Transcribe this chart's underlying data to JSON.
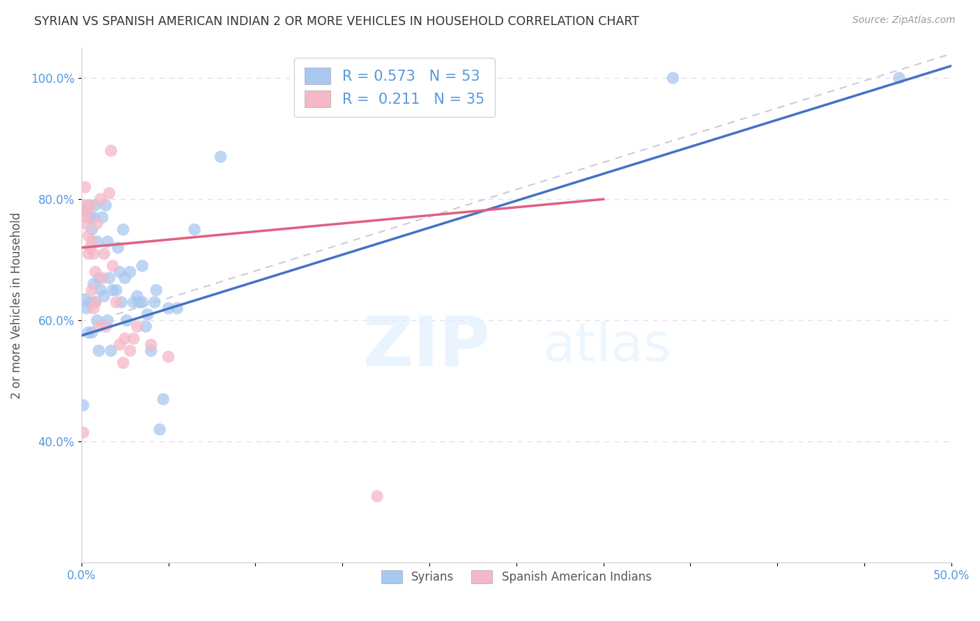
{
  "title": "SYRIAN VS SPANISH AMERICAN INDIAN 2 OR MORE VEHICLES IN HOUSEHOLD CORRELATION CHART",
  "source": "Source: ZipAtlas.com",
  "ylabel": "2 or more Vehicles in Household",
  "xlim": [
    0.0,
    0.5
  ],
  "ylim": [
    0.2,
    1.05
  ],
  "xticks": [
    0.0,
    0.05,
    0.1,
    0.15,
    0.2,
    0.25,
    0.3,
    0.35,
    0.4,
    0.45,
    0.5
  ],
  "xticklabels": [
    "0.0%",
    "",
    "",
    "",
    "",
    "",
    "",
    "",
    "",
    "",
    "50.0%"
  ],
  "yticks": [
    0.4,
    0.6,
    0.8,
    1.0
  ],
  "yticklabels": [
    "40.0%",
    "60.0%",
    "80.0%",
    "100.0%"
  ],
  "legend_labels": [
    "R = 0.573   N = 53",
    "R =  0.211   N = 35"
  ],
  "bottom_legend": [
    "Syrians",
    "Spanish American Indians"
  ],
  "blue_color": "#a8c8f0",
  "pink_color": "#f5b8c8",
  "blue_line_color": "#4472c4",
  "pink_line_color": "#e06080",
  "ref_line_color": "#d0c8d8",
  "blue_line_x0": 0.0,
  "blue_line_y0": 0.575,
  "blue_line_x1": 0.5,
  "blue_line_y1": 1.02,
  "pink_line_x0": 0.0,
  "pink_line_y0": 0.72,
  "pink_line_x1": 0.3,
  "pink_line_y1": 0.8,
  "ref_line_x0": 0.02,
  "ref_line_y0": 0.61,
  "ref_line_x1": 0.5,
  "ref_line_y1": 1.04,
  "syrians_x": [
    0.001,
    0.002,
    0.002,
    0.003,
    0.004,
    0.004,
    0.005,
    0.005,
    0.006,
    0.006,
    0.007,
    0.007,
    0.008,
    0.008,
    0.009,
    0.009,
    0.01,
    0.01,
    0.011,
    0.012,
    0.013,
    0.014,
    0.015,
    0.015,
    0.016,
    0.017,
    0.018,
    0.02,
    0.021,
    0.022,
    0.023,
    0.024,
    0.025,
    0.026,
    0.028,
    0.03,
    0.032,
    0.033,
    0.035,
    0.035,
    0.037,
    0.038,
    0.04,
    0.042,
    0.043,
    0.045,
    0.047,
    0.05,
    0.055,
    0.065,
    0.08,
    0.34,
    0.47
  ],
  "syrians_y": [
    0.46,
    0.635,
    0.78,
    0.62,
    0.58,
    0.79,
    0.77,
    0.63,
    0.58,
    0.75,
    0.77,
    0.66,
    0.63,
    0.79,
    0.6,
    0.73,
    0.67,
    0.55,
    0.65,
    0.77,
    0.64,
    0.79,
    0.6,
    0.73,
    0.67,
    0.55,
    0.65,
    0.65,
    0.72,
    0.68,
    0.63,
    0.75,
    0.67,
    0.6,
    0.68,
    0.63,
    0.64,
    0.63,
    0.69,
    0.63,
    0.59,
    0.61,
    0.55,
    0.63,
    0.65,
    0.42,
    0.47,
    0.62,
    0.62,
    0.75,
    0.87,
    1.0,
    1.0
  ],
  "spanish_x": [
    0.001,
    0.001,
    0.002,
    0.002,
    0.003,
    0.003,
    0.004,
    0.004,
    0.005,
    0.005,
    0.006,
    0.006,
    0.007,
    0.007,
    0.008,
    0.008,
    0.009,
    0.01,
    0.011,
    0.012,
    0.013,
    0.014,
    0.016,
    0.017,
    0.018,
    0.02,
    0.022,
    0.024,
    0.025,
    0.028,
    0.03,
    0.032,
    0.04,
    0.05,
    0.17
  ],
  "spanish_y": [
    0.415,
    0.79,
    0.82,
    0.76,
    0.78,
    0.77,
    0.71,
    0.74,
    0.72,
    0.79,
    0.73,
    0.65,
    0.71,
    0.62,
    0.68,
    0.63,
    0.76,
    0.59,
    0.8,
    0.67,
    0.71,
    0.59,
    0.81,
    0.88,
    0.69,
    0.63,
    0.56,
    0.53,
    0.57,
    0.55,
    0.57,
    0.59,
    0.56,
    0.54,
    0.31
  ],
  "watermark_zip": "ZIP",
  "watermark_atlas": "atlas",
  "background_color": "#ffffff",
  "grid_color": "#e0e0ec",
  "tick_color": "#5599dd",
  "ylabel_color": "#555555",
  "title_color": "#333333"
}
